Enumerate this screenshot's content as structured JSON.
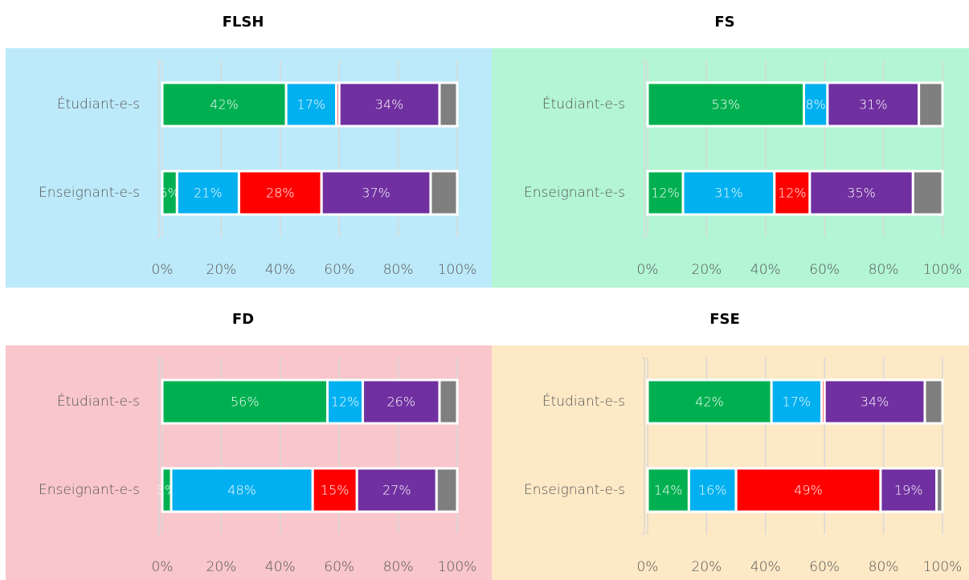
{
  "chart_data": [
    {
      "type": "stacked-bar",
      "title": "FLSH",
      "background": "#bdeafa",
      "categories": [
        "Étudiant-e-s",
        "Enseignant-e-s"
      ],
      "series": [
        {
          "color": "#00b050",
          "values": [
            42,
            5
          ],
          "value_labels": [
            "42%",
            "5%"
          ]
        },
        {
          "color": "#00b0f0",
          "values": [
            17,
            21
          ],
          "value_labels": [
            "17%",
            "21%"
          ]
        },
        {
          "color": "#ff0000",
          "values": [
            1,
            28
          ],
          "value_labels": [
            null,
            "28%"
          ]
        },
        {
          "color": "#7030a0",
          "values": [
            34,
            37
          ],
          "value_labels": [
            "34%",
            "37%"
          ]
        },
        {
          "color": "#7f7f7f",
          "values": [
            6,
            9
          ],
          "value_labels": [
            null,
            null
          ]
        }
      ],
      "xlim": [
        0,
        100
      ],
      "xticks": [
        {
          "value": 0,
          "label": "0%"
        },
        {
          "value": 20,
          "label": "20%"
        },
        {
          "value": 40,
          "label": "40%"
        },
        {
          "value": 60,
          "label": "60%"
        },
        {
          "value": 80,
          "label": "80%"
        },
        {
          "value": 100,
          "label": "100%"
        }
      ],
      "grid": true
    },
    {
      "type": "stacked-bar",
      "title": "FS",
      "background": "#b3f5d4",
      "categories": [
        "Étudiant-e-s",
        "Enseignant-e-s"
      ],
      "series": [
        {
          "color": "#00b050",
          "values": [
            53,
            12
          ],
          "value_labels": [
            "53%",
            "12%"
          ]
        },
        {
          "color": "#00b0f0",
          "values": [
            8,
            31
          ],
          "value_labels": [
            "8%",
            "31%"
          ]
        },
        {
          "color": "#ff0000",
          "values": [
            0,
            12
          ],
          "value_labels": [
            null,
            "12%"
          ]
        },
        {
          "color": "#7030a0",
          "values": [
            31,
            35
          ],
          "value_labels": [
            "31%",
            "35%"
          ]
        },
        {
          "color": "#7f7f7f",
          "values": [
            8,
            10
          ],
          "value_labels": [
            null,
            null
          ]
        }
      ],
      "xlim": [
        0,
        100
      ],
      "xticks": [
        {
          "value": 0,
          "label": "0%"
        },
        {
          "value": 20,
          "label": "20%"
        },
        {
          "value": 40,
          "label": "40%"
        },
        {
          "value": 60,
          "label": "60%"
        },
        {
          "value": 80,
          "label": "80%"
        },
        {
          "value": 100,
          "label": "100%"
        }
      ],
      "grid": true
    },
    {
      "type": "stacked-bar",
      "title": "FD",
      "background": "#f8c6cb",
      "categories": [
        "Étudiant-e-s",
        "Enseignant-e-s"
      ],
      "series": [
        {
          "color": "#00b050",
          "values": [
            56,
            3
          ],
          "value_labels": [
            "56%",
            "3%"
          ]
        },
        {
          "color": "#00b0f0",
          "values": [
            12,
            48
          ],
          "value_labels": [
            "12%",
            "48%"
          ]
        },
        {
          "color": "#ff0000",
          "values": [
            0,
            15
          ],
          "value_labels": [
            null,
            "15%"
          ]
        },
        {
          "color": "#7030a0",
          "values": [
            26,
            27
          ],
          "value_labels": [
            "26%",
            "27%"
          ]
        },
        {
          "color": "#7f7f7f",
          "values": [
            6,
            7
          ],
          "value_labels": [
            null,
            null
          ]
        }
      ],
      "xlim": [
        0,
        100
      ],
      "xticks": [
        {
          "value": 0,
          "label": "0%"
        },
        {
          "value": 20,
          "label": "20%"
        },
        {
          "value": 40,
          "label": "40%"
        },
        {
          "value": 60,
          "label": "60%"
        },
        {
          "value": 80,
          "label": "80%"
        },
        {
          "value": 100,
          "label": "100%"
        }
      ],
      "grid": true
    },
    {
      "type": "stacked-bar",
      "title": "FSE",
      "background": "#fde9c6",
      "categories": [
        "Étudiant-e-s",
        "Enseignant-e-s"
      ],
      "series": [
        {
          "color": "#00b050",
          "values": [
            42,
            14
          ],
          "value_labels": [
            "42%",
            "14%"
          ]
        },
        {
          "color": "#00b0f0",
          "values": [
            17,
            16
          ],
          "value_labels": [
            "17%",
            "16%"
          ]
        },
        {
          "color": "#ff0000",
          "values": [
            1,
            49
          ],
          "value_labels": [
            null,
            "49%"
          ]
        },
        {
          "color": "#7030a0",
          "values": [
            34,
            19
          ],
          "value_labels": [
            "34%",
            "19%"
          ]
        },
        {
          "color": "#7f7f7f",
          "values": [
            6,
            2
          ],
          "value_labels": [
            null,
            null
          ]
        }
      ],
      "xlim": [
        0,
        100
      ],
      "xticks": [
        {
          "value": 0,
          "label": "0%"
        },
        {
          "value": 20,
          "label": "20%"
        },
        {
          "value": 40,
          "label": "40%"
        },
        {
          "value": 60,
          "label": "60%"
        },
        {
          "value": 80,
          "label": "80%"
        },
        {
          "value": 100,
          "label": "100%"
        }
      ],
      "grid": true
    }
  ]
}
